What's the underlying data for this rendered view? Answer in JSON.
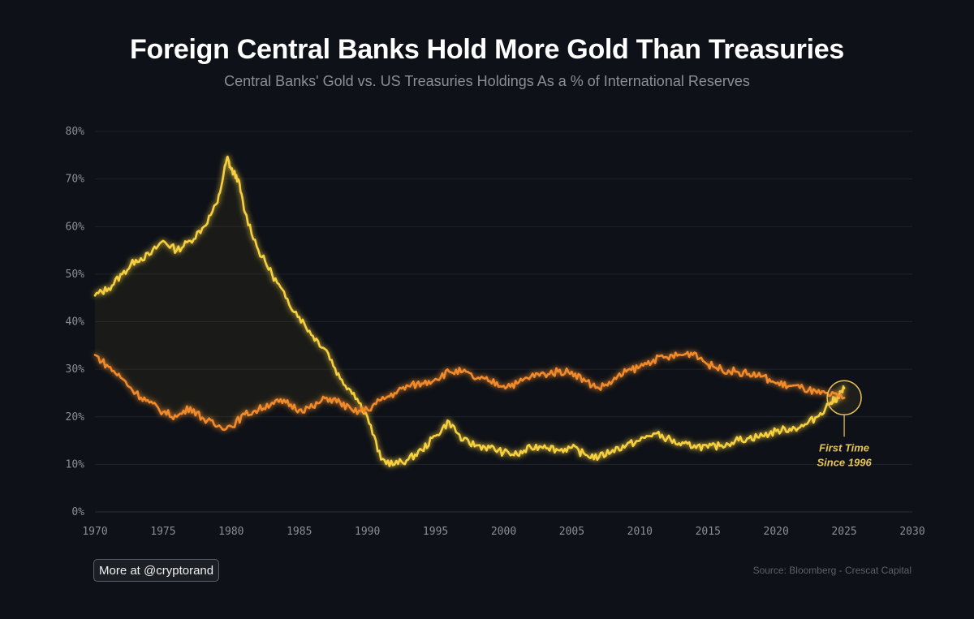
{
  "header": {
    "title": "Foreign Central Banks Hold More Gold Than Treasuries",
    "subtitle": "Central Banks' Gold vs. US Treasuries Holdings As a % of International Reserves"
  },
  "footer": {
    "badge_label": "More at @cryptorand",
    "source": "Source: Bloomberg - Crescat Capital"
  },
  "annotation": {
    "line1": "First Time",
    "line2": "Since 1996"
  },
  "colors": {
    "gold": "#f7d040",
    "treasuries": "#f08a2c",
    "annotation": "#e7c35a",
    "background": "#0e1117"
  },
  "chart_data": {
    "type": "line",
    "x_ticks": [
      "1970",
      "1975",
      "1980",
      "1985",
      "1990",
      "1995",
      "2000",
      "2005",
      "2010",
      "2015",
      "2020",
      "2025",
      "2030"
    ],
    "y_ticks": [
      "0%",
      "10%",
      "20%",
      "30%",
      "40%",
      "50%",
      "60%",
      "70%",
      "80%"
    ],
    "xlim": [
      1970,
      2030
    ],
    "ylim": [
      0,
      80
    ],
    "grid": true,
    "series": [
      {
        "color": "#f7d040",
        "x": [
          1970,
          1971,
          1972,
          1973,
          1974,
          1975,
          1976,
          1977,
          1978,
          1979,
          1979.7,
          1980,
          1980.5,
          1981,
          1982,
          1983,
          1984,
          1985,
          1986,
          1987,
          1988,
          1989,
          1990,
          1991,
          1992,
          1993,
          1994,
          1995,
          1996,
          1997,
          1998,
          1999,
          2000,
          2001,
          2002,
          2003,
          2004,
          2005,
          2006,
          2007,
          2008,
          2009,
          2010,
          2011,
          2012,
          2013,
          2014,
          2015,
          2016,
          2017,
          2018,
          2019,
          2020,
          2021,
          2022,
          2023,
          2024,
          2024.5,
          2025
        ],
        "y": [
          45.5,
          47,
          50,
          53,
          54,
          57,
          55,
          57,
          60,
          65,
          74.5,
          72,
          70,
          63,
          55,
          50,
          45,
          41,
          37,
          34,
          28,
          25,
          20,
          11,
          10,
          11,
          13,
          16,
          19,
          15,
          14,
          13.5,
          12.5,
          12,
          13.5,
          14,
          13,
          13.5,
          12,
          11.5,
          13,
          14,
          15,
          16.5,
          15.5,
          14,
          14,
          13.5,
          14,
          15,
          15.5,
          16,
          17,
          17.5,
          18,
          20,
          23,
          24,
          26
        ]
      },
      {
        "color": "#f08a2c",
        "x": [
          1970,
          1971,
          1972,
          1973,
          1974,
          1975,
          1976,
          1977,
          1978,
          1979,
          1980,
          1981,
          1982,
          1983,
          1984,
          1985,
          1986,
          1987,
          1988,
          1989,
          1990,
          1991,
          1992,
          1993,
          1994,
          1995,
          1996,
          1997,
          1998,
          1999,
          2000,
          2001,
          2002,
          2003,
          2004,
          2005,
          2006,
          2007,
          2008,
          2009,
          2010,
          2011,
          2012,
          2013,
          2014,
          2015,
          2016,
          2017,
          2018,
          2019,
          2020,
          2021,
          2022,
          2023,
          2024,
          2025
        ],
        "y": [
          33,
          30.5,
          28,
          25,
          23,
          21,
          20,
          22,
          19.5,
          18,
          18,
          20.5,
          21.5,
          23,
          23,
          21.5,
          22,
          24,
          23,
          21,
          21.5,
          23.5,
          25,
          26.5,
          27,
          28,
          29.5,
          29.5,
          28,
          27.5,
          26.5,
          27,
          28.5,
          29,
          29.5,
          29.5,
          27.5,
          26,
          27.5,
          29.5,
          30.5,
          32,
          32.5,
          33,
          33.5,
          31,
          30,
          29.5,
          29,
          28.5,
          27,
          26.5,
          26,
          25,
          24.5,
          24
        ]
      }
    ],
    "annotation_point": {
      "x": 2025,
      "y": 24
    }
  }
}
